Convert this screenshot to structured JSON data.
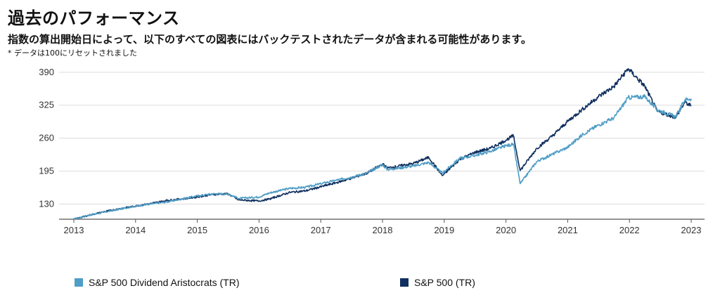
{
  "header": {
    "title": "過去のパフォーマンス",
    "subtitle": "指数の算出開始日によって、以下のすべての図表にはバックテストされたデータが含まれる可能性があります。",
    "note": "* データは100にリセットされました"
  },
  "chart_data": {
    "type": "line",
    "x_range": [
      2013.0,
      2023.0
    ],
    "ylim": [
      100,
      405
    ],
    "yticks": [
      130,
      195,
      260,
      325,
      390
    ],
    "yticks_labels": [
      "130",
      "195",
      "260",
      "325",
      "390"
    ],
    "xticks": [
      2013,
      2014,
      2015,
      2016,
      2017,
      2018,
      2019,
      2020,
      2021,
      2022,
      2023
    ],
    "xticks_labels": [
      "2013",
      "2014",
      "2015",
      "2016",
      "2017",
      "2018",
      "2019",
      "2020",
      "2021",
      "2022",
      "2023"
    ],
    "grid": "horizontal",
    "legend_position": "bottom",
    "series": [
      {
        "name": "S&P 500 Dividend Aristocrats (TR)",
        "color": "#4f9ec6",
        "points": [
          [
            2013.0,
            100
          ],
          [
            2013.25,
            108
          ],
          [
            2013.5,
            114
          ],
          [
            2013.75,
            120
          ],
          [
            2014.0,
            126
          ],
          [
            2014.25,
            130
          ],
          [
            2014.5,
            134
          ],
          [
            2014.75,
            140
          ],
          [
            2015.0,
            146
          ],
          [
            2015.25,
            150
          ],
          [
            2015.5,
            150
          ],
          [
            2015.67,
            141
          ],
          [
            2016.0,
            144
          ],
          [
            2016.17,
            152
          ],
          [
            2016.5,
            161
          ],
          [
            2016.75,
            163
          ],
          [
            2017.0,
            170
          ],
          [
            2017.25,
            177
          ],
          [
            2017.5,
            183
          ],
          [
            2017.75,
            191
          ],
          [
            2018.0,
            208
          ],
          [
            2018.08,
            198
          ],
          [
            2018.5,
            205
          ],
          [
            2018.75,
            212
          ],
          [
            2018.97,
            191
          ],
          [
            2019.25,
            220
          ],
          [
            2019.5,
            226
          ],
          [
            2019.75,
            234
          ],
          [
            2020.0,
            245
          ],
          [
            2020.12,
            248
          ],
          [
            2020.23,
            170
          ],
          [
            2020.5,
            214
          ],
          [
            2020.75,
            228
          ],
          [
            2021.0,
            242
          ],
          [
            2021.25,
            268
          ],
          [
            2021.5,
            286
          ],
          [
            2021.75,
            300
          ],
          [
            2021.98,
            340
          ],
          [
            2022.25,
            342
          ],
          [
            2022.45,
            316
          ],
          [
            2022.75,
            302
          ],
          [
            2022.9,
            336
          ],
          [
            2023.0,
            338
          ]
        ]
      },
      {
        "name": "S&P 500 (TR)",
        "color": "#0f2f5e",
        "points": [
          [
            2013.0,
            100
          ],
          [
            2013.25,
            108
          ],
          [
            2013.5,
            115
          ],
          [
            2013.75,
            121
          ],
          [
            2014.0,
            126
          ],
          [
            2014.25,
            131
          ],
          [
            2014.5,
            137
          ],
          [
            2014.75,
            140
          ],
          [
            2015.0,
            144
          ],
          [
            2015.25,
            149
          ],
          [
            2015.5,
            150
          ],
          [
            2015.67,
            138
          ],
          [
            2016.0,
            136
          ],
          [
            2016.17,
            140
          ],
          [
            2016.5,
            153
          ],
          [
            2016.75,
            156
          ],
          [
            2017.0,
            164
          ],
          [
            2017.25,
            172
          ],
          [
            2017.5,
            181
          ],
          [
            2017.75,
            191
          ],
          [
            2018.0,
            209
          ],
          [
            2018.08,
            201
          ],
          [
            2018.5,
            210
          ],
          [
            2018.75,
            222
          ],
          [
            2018.97,
            186
          ],
          [
            2019.25,
            218
          ],
          [
            2019.5,
            232
          ],
          [
            2019.75,
            240
          ],
          [
            2020.0,
            256
          ],
          [
            2020.12,
            265
          ],
          [
            2020.23,
            196
          ],
          [
            2020.5,
            240
          ],
          [
            2020.75,
            264
          ],
          [
            2021.0,
            293
          ],
          [
            2021.25,
            318
          ],
          [
            2021.5,
            342
          ],
          [
            2021.75,
            362
          ],
          [
            2021.98,
            397
          ],
          [
            2022.25,
            362
          ],
          [
            2022.45,
            313
          ],
          [
            2022.75,
            301
          ],
          [
            2022.9,
            331
          ],
          [
            2023.0,
            323
          ]
        ]
      }
    ]
  }
}
